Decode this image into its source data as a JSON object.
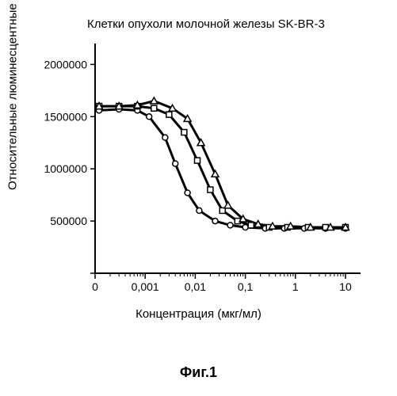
{
  "chart": {
    "type": "line",
    "title": "Клетки опухоли молочной железы SK-BR-3",
    "title_fontsize": 15,
    "ylabel": "Относительные люминесцентные единицы",
    "xlabel": "Концентрация (мкг/мл)",
    "label_fontsize": 15,
    "caption": "Фиг.1",
    "caption_fontsize": 18,
    "background_color": "#ffffff",
    "axis_color": "#000000",
    "axis_linewidth": 2,
    "xscale": "log",
    "yscale": "linear",
    "xlim": [
      0.0001,
      20
    ],
    "ylim": [
      0,
      2200000
    ],
    "ytick_values": [
      0,
      500000,
      1000000,
      1500000,
      2000000
    ],
    "ytick_labels": [
      "",
      "500000",
      "1000000",
      "1500000",
      "2000000"
    ],
    "xtick_values": [
      0.0001,
      0.001,
      0.01,
      0.1,
      1,
      10
    ],
    "xtick_labels": [
      "0",
      "0,001",
      "0,01",
      "0,1",
      "1",
      "10"
    ],
    "tick_fontsize": 14,
    "minor_tick_color": "#000000",
    "line_color": "#000000",
    "line_width": 3,
    "marker_size": 7,
    "marker_fill": "#ffffff",
    "marker_stroke": "#000000",
    "marker_stroke_width": 1.5,
    "series": [
      {
        "name": "circle-series",
        "marker": "circle",
        "x": [
          0.00012,
          0.0003,
          0.0007,
          0.0012,
          0.0025,
          0.004,
          0.007,
          0.012,
          0.025,
          0.05,
          0.1,
          0.25,
          0.6,
          1.5,
          4,
          10
        ],
        "y": [
          1560000,
          1570000,
          1560000,
          1500000,
          1300000,
          1050000,
          770000,
          600000,
          500000,
          460000,
          440000,
          430000,
          430000,
          430000,
          430000,
          430000
        ]
      },
      {
        "name": "square-series",
        "marker": "square",
        "x": [
          0.00012,
          0.0003,
          0.0007,
          0.0015,
          0.003,
          0.006,
          0.011,
          0.02,
          0.035,
          0.07,
          0.13,
          0.3,
          0.7,
          1.8,
          4,
          10
        ],
        "y": [
          1600000,
          1600000,
          1600000,
          1580000,
          1520000,
          1350000,
          1080000,
          800000,
          600000,
          500000,
          460000,
          440000,
          440000,
          440000,
          440000,
          440000
        ]
      },
      {
        "name": "triangle-series",
        "marker": "triangle",
        "x": [
          0.00012,
          0.0003,
          0.0007,
          0.0015,
          0.0035,
          0.007,
          0.013,
          0.025,
          0.045,
          0.09,
          0.18,
          0.35,
          0.8,
          2,
          5,
          10
        ],
        "y": [
          1600000,
          1600000,
          1610000,
          1650000,
          1580000,
          1480000,
          1250000,
          950000,
          650000,
          520000,
          470000,
          450000,
          450000,
          440000,
          440000,
          440000
        ]
      }
    ]
  }
}
